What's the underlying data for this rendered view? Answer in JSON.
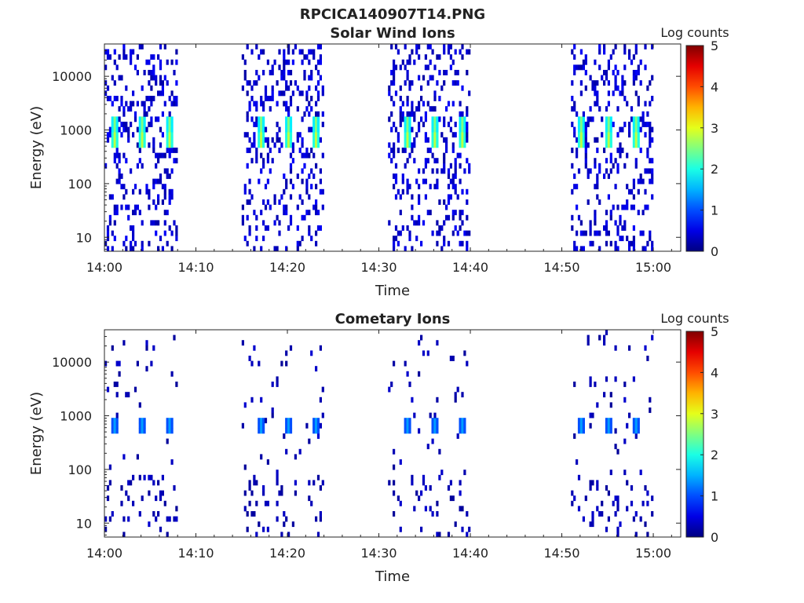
{
  "figure": {
    "title": "RPCICA140907T14.PNG"
  },
  "chart_data": [
    {
      "type": "heatmap",
      "title": "Solar Wind Ions",
      "xlabel": "Time",
      "ylabel": "Energy (eV)",
      "x_tick_labels": [
        "14:00",
        "14:10",
        "14:20",
        "14:30",
        "14:40",
        "14:50",
        "15:00"
      ],
      "x_range": [
        "14:00",
        "15:03"
      ],
      "y_scale": "log",
      "y_tick_labels": [
        "10",
        "100",
        "1000",
        "10000"
      ],
      "y_range": [
        5.5,
        40000
      ],
      "colorbar": {
        "label": "Log counts",
        "ticks": [
          "0",
          "1",
          "2",
          "3",
          "4",
          "5"
        ],
        "range": [
          0,
          5
        ],
        "colormap": "jet"
      },
      "bursts": [
        {
          "start": "14:00",
          "end": "14:08",
          "peaks": [
            "14:01",
            "14:04",
            "14:07"
          ]
        },
        {
          "start": "14:15",
          "end": "14:24",
          "peaks": [
            "14:17",
            "14:20",
            "14:23"
          ]
        },
        {
          "start": "14:31",
          "end": "14:40",
          "peaks": [
            "14:33",
            "14:36",
            "14:39"
          ]
        },
        {
          "start": "14:51",
          "end": "15:00",
          "peaks": [
            "14:52",
            "14:55",
            "14:58"
          ]
        }
      ],
      "peak_bands": [
        {
          "energy_ev": 1300,
          "log_counts": 2.5
        },
        {
          "energy_ev": 650,
          "log_counts": 2.8
        }
      ],
      "background_log_counts": 0.3
    },
    {
      "type": "heatmap",
      "title": "Cometary Ions",
      "xlabel": "Time",
      "ylabel": "Energy (eV)",
      "x_tick_labels": [
        "14:00",
        "14:10",
        "14:20",
        "14:30",
        "14:40",
        "14:50",
        "15:00"
      ],
      "x_range": [
        "14:00",
        "15:03"
      ],
      "y_scale": "log",
      "y_tick_labels": [
        "10",
        "100",
        "1000",
        "10000"
      ],
      "y_range": [
        5.5,
        40000
      ],
      "colorbar": {
        "label": "Log counts",
        "ticks": [
          "0",
          "1",
          "2",
          "3",
          "4",
          "5"
        ],
        "range": [
          0,
          5
        ],
        "colormap": "jet"
      },
      "bursts": [
        {
          "start": "14:00",
          "end": "14:08",
          "peaks": [
            "14:01",
            "14:04",
            "14:07"
          ]
        },
        {
          "start": "14:15",
          "end": "14:24",
          "peaks": [
            "14:17",
            "14:20",
            "14:23"
          ]
        },
        {
          "start": "14:31",
          "end": "14:40",
          "peaks": [
            "14:33",
            "14:36",
            "14:39"
          ]
        },
        {
          "start": "14:51",
          "end": "15:00",
          "peaks": [
            "14:52",
            "14:55",
            "14:58"
          ]
        }
      ],
      "peak_bands": [
        {
          "energy_ev": 650,
          "log_counts": 1.4
        }
      ],
      "background_log_counts": 0.2
    }
  ]
}
